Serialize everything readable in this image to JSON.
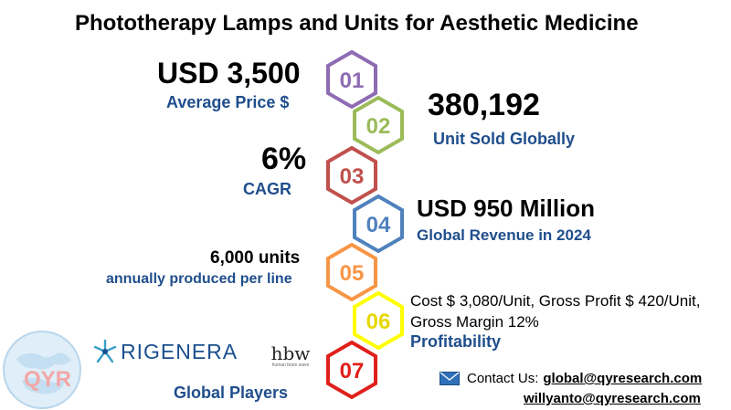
{
  "title": "Phototherapy Lamps and Units for Aesthetic Medicine",
  "steps": [
    {
      "num": "01",
      "value": "USD 3,500",
      "label": "Average Price $",
      "color": "#8e6bb3"
    },
    {
      "num": "02",
      "value": "380,192",
      "label": "Unit Sold Globally",
      "color": "#9bbb59"
    },
    {
      "num": "03",
      "value": "6%",
      "label": "CAGR",
      "color": "#c0504d"
    },
    {
      "num": "04",
      "value": "USD 950 Million",
      "label": "Global Revenue in 2024",
      "color": "#4f81bd"
    },
    {
      "num": "05",
      "value": "6,000 units",
      "label": "annually produced per line",
      "color": "#f79646"
    },
    {
      "num": "06",
      "value": "Cost $ 3,080/Unit, Gross Profit $ 420/Unit, Gross Margin 12%",
      "label": "Profitability",
      "color": "#ffff00"
    },
    {
      "num": "07",
      "value": "",
      "label": "Global Players",
      "color": "#e0201b"
    }
  ],
  "players": {
    "rigenera": "RIGENERA",
    "hbw": "hbw",
    "hbw_tag": "human brain wave"
  },
  "watermark": "QYR",
  "contact": {
    "prefix": "Contact Us:",
    "email1": "global@qyresearch.com",
    "email2": "willyanto@qyresearch.com"
  }
}
